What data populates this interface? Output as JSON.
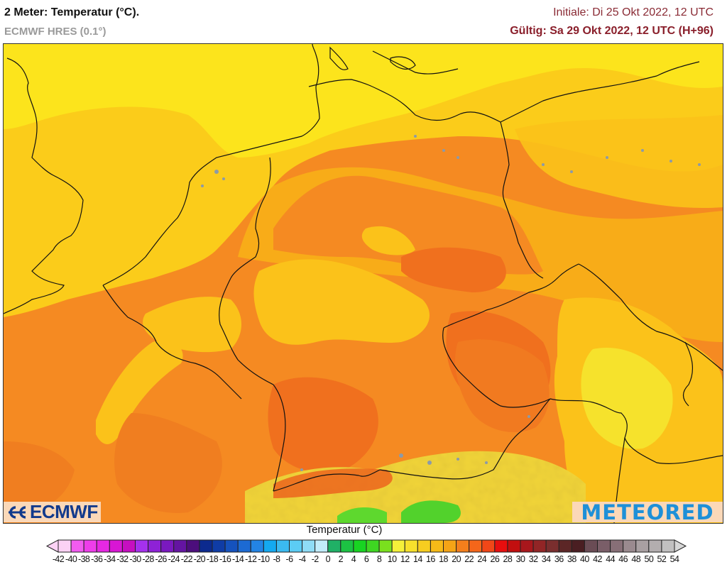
{
  "header": {
    "title": "2 Meter: Temperatur (°C).",
    "model": "ECMWF HRES (0.1°)",
    "init": "Initiale: Di 25 Okt 2022, 12 UTC",
    "valid": "Gültig: Sa 29 Okt 2022, 12 UTC (H+96)"
  },
  "logos": {
    "left": "ECMWF",
    "right": "METEORED"
  },
  "legend": {
    "title": "Temperatur (°C)",
    "unit": "°C",
    "labels": [
      "-42",
      "-40",
      "-38",
      "-36",
      "-34",
      "-32",
      "-30",
      "-28",
      "-26",
      "-24",
      "-22",
      "-20",
      "-18",
      "-16",
      "-14",
      "-12",
      "-10",
      "-8",
      "-6",
      "-4",
      "-2",
      "0",
      "2",
      "4",
      "6",
      "8",
      "10",
      "12",
      "14",
      "16",
      "18",
      "20",
      "22",
      "24",
      "26",
      "28",
      "30",
      "32",
      "34",
      "36",
      "38",
      "40",
      "42",
      "44",
      "46",
      "48",
      "50",
      "52",
      "54"
    ],
    "colors": [
      "#fcd2f5",
      "#f25cf0",
      "#ee3dea",
      "#e628e3",
      "#d816d4",
      "#c60fc0",
      "#a531ed",
      "#8e22d6",
      "#7a19bf",
      "#6414a2",
      "#4c0e7c",
      "#0c2a8e",
      "#0f3ca6",
      "#1552bd",
      "#1c6ad3",
      "#2384e4",
      "#14a9f0",
      "#3bbaf0",
      "#5cccf4",
      "#8fdcf6",
      "#c2ecfa",
      "#20b066",
      "#1cc243",
      "#18d422",
      "#3ed622",
      "#7ae01e",
      "#f4f03a",
      "#f7e02c",
      "#f7cd20",
      "#f6ba18",
      "#f5a416",
      "#f47f1c",
      "#f5661a",
      "#f14718",
      "#e80e0e",
      "#c20f0f",
      "#a8171c",
      "#922526",
      "#7a2e2e",
      "#5c2626",
      "#4a1e22",
      "#6a4c55",
      "#7a5e68",
      "#876f77",
      "#9a8a8f",
      "#a9a0a2",
      "#b3aeaf",
      "#c1c0c0"
    ],
    "under_color": "#fcd2f5",
    "over_color": "#d6d6d6"
  },
  "map": {
    "variable": "2m temperature",
    "region": "Central Europe (Germany, Benelux, France NE, Czechia, Austria, Poland W)",
    "colors": {
      "sea_yellow": "#fce41c",
      "light_orange": "#fbcc1a",
      "mid_orange": "#f8ac18",
      "orange": "#f58a22",
      "dark_orange": "#f0701e",
      "alps_yellow": "#f2e23a",
      "alps_green": "#4cd82a",
      "border": "#111111",
      "lakes": "#8c9aa8"
    }
  }
}
